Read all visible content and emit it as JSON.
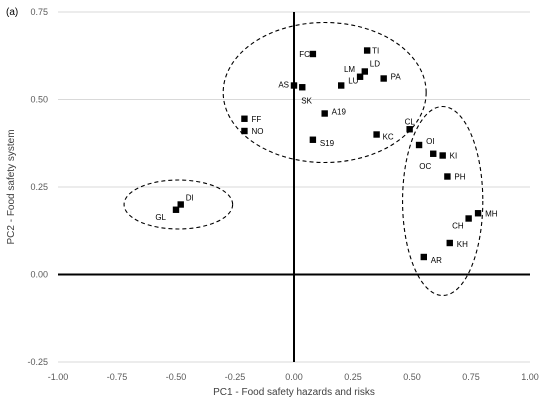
{
  "chart_data": {
    "type": "scatter",
    "panel_label": "(a)",
    "xlabel": "PC1 - Food safety hazards and risks",
    "ylabel": "PC2 - Food safety system",
    "xlim": [
      -1.0,
      1.0
    ],
    "ylim": [
      -0.25,
      0.75
    ],
    "x_ticks": [
      "-1.00",
      "-0.75",
      "-0.50",
      "-0.25",
      "0.00",
      "0.25",
      "0.50",
      "0.75",
      "1.00"
    ],
    "y_ticks": [
      "-0.25",
      "0.00",
      "0.25",
      "0.50",
      "0.75"
    ],
    "grid": "horizontal",
    "marker_color": "#000000",
    "points": [
      {
        "label": "FC",
        "x": 0.08,
        "y": 0.63
      },
      {
        "label": "TI",
        "x": 0.31,
        "y": 0.64
      },
      {
        "label": "LD",
        "x": 0.3,
        "y": 0.58
      },
      {
        "label": "LM",
        "x": 0.28,
        "y": 0.565
      },
      {
        "label": "PA",
        "x": 0.38,
        "y": 0.56
      },
      {
        "label": "LU",
        "x": 0.2,
        "y": 0.54
      },
      {
        "label": "AS",
        "x": 0.0,
        "y": 0.54
      },
      {
        "label": "SK",
        "x": 0.035,
        "y": 0.535
      },
      {
        "label": "A19",
        "x": 0.13,
        "y": 0.46
      },
      {
        "label": "FF",
        "x": -0.21,
        "y": 0.445
      },
      {
        "label": "NO",
        "x": -0.21,
        "y": 0.41
      },
      {
        "label": "S19",
        "x": 0.08,
        "y": 0.385
      },
      {
        "label": "KC",
        "x": 0.35,
        "y": 0.4
      },
      {
        "label": "CL",
        "x": 0.49,
        "y": 0.415
      },
      {
        "label": "OI",
        "x": 0.53,
        "y": 0.37
      },
      {
        "label": "OC",
        "x": 0.59,
        "y": 0.345
      },
      {
        "label": "KI",
        "x": 0.63,
        "y": 0.34
      },
      {
        "label": "PH",
        "x": 0.65,
        "y": 0.28
      },
      {
        "label": "MH",
        "x": 0.78,
        "y": 0.175
      },
      {
        "label": "CH",
        "x": 0.74,
        "y": 0.16
      },
      {
        "label": "KH",
        "x": 0.66,
        "y": 0.09
      },
      {
        "label": "AR",
        "x": 0.55,
        "y": 0.05
      },
      {
        "label": "DI",
        "x": -0.48,
        "y": 0.2
      },
      {
        "label": "GL",
        "x": -0.5,
        "y": 0.185
      }
    ],
    "clusters": [
      {
        "cx": 0.13,
        "cy": 0.52,
        "rx": 0.43,
        "ry": 0.2
      },
      {
        "cx": 0.63,
        "cy": 0.21,
        "rx": 0.17,
        "ry": 0.27
      },
      {
        "cx": -0.49,
        "cy": 0.2,
        "rx": 0.23,
        "ry": 0.07
      }
    ]
  }
}
